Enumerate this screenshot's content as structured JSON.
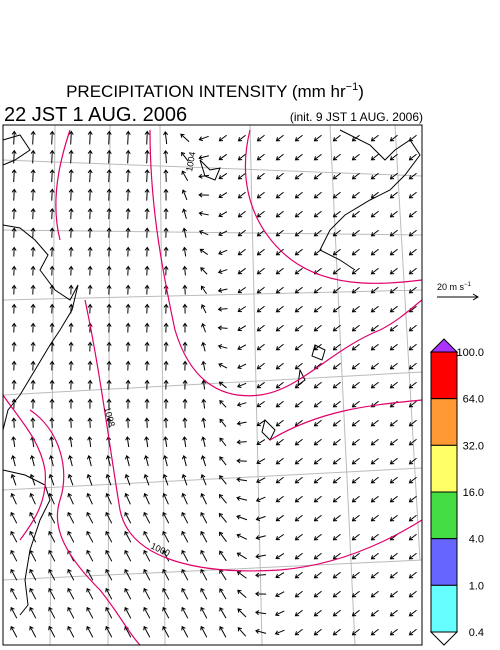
{
  "header": {
    "title": "PRECIPITATION INTENSITY (mm hr",
    "title_exponent": "−1",
    "title_close": ")",
    "valid_time": "22 JST 1 AUG. 2006",
    "init_time": "(init. 9 JST 1 AUG. 2006)"
  },
  "vector_legend": {
    "label": "20 m s",
    "exponent": "−1"
  },
  "contour_labels": [
    "1004",
    "1008",
    "1000"
  ],
  "colorbar": {
    "ticks": [
      {
        "value": 100,
        "label": "100.0"
      },
      {
        "value": 64,
        "label": "64.0"
      },
      {
        "value": 32,
        "label": "32.0"
      },
      {
        "value": 16,
        "label": "16.0"
      },
      {
        "value": 4,
        "label": "4.0"
      },
      {
        "value": 1,
        "label": "1.0"
      },
      {
        "value": 0.4,
        "label": "0.4"
      }
    ],
    "colors": [
      "#ff0000",
      "#ff9933",
      "#ffff66",
      "#44dd44",
      "#6666ff",
      "#66ffff"
    ],
    "over_color": "#aa33ff",
    "under_color": "#ffffff"
  }
}
